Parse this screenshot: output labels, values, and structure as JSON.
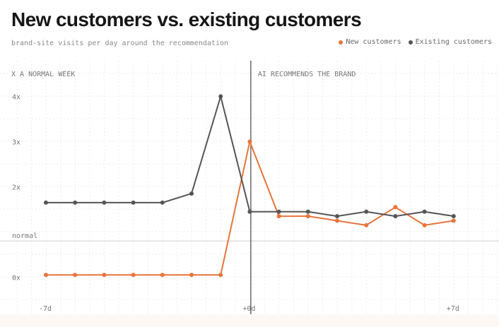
{
  "title": "New customers vs. existing customers",
  "subtitle": "brand-site visits per day around the recommendation",
  "legend": [
    {
      "label": "New customers",
      "color": "#e8743b"
    },
    {
      "label": "Existing customers",
      "color": "#555555"
    }
  ],
  "annotations": {
    "left": "X A NORMAL WEEK",
    "right": "AI RECOMMENDS THE BRAND",
    "normal_line": "normal"
  },
  "chart_data": {
    "type": "line",
    "title": "New customers vs. existing customers",
    "subtitle": "brand-site visits per day around the recommendation",
    "xlabel": "",
    "ylabel": "",
    "x": [
      -7,
      -6,
      -5,
      -4,
      -3,
      -2,
      -1,
      0,
      1,
      2,
      3,
      4,
      5,
      6,
      7
    ],
    "xticks": [
      {
        "value": -7,
        "label": "-7d"
      },
      {
        "value": 0,
        "label": "+0d"
      },
      {
        "value": 7,
        "label": "+7d"
      }
    ],
    "yticks": [
      {
        "value": 0,
        "label": "0x"
      },
      {
        "value": 2,
        "label": "2x"
      },
      {
        "value": 3,
        "label": "3x"
      },
      {
        "value": 4,
        "label": "4x"
      }
    ],
    "xlim": [
      -7.3,
      8.5
    ],
    "ylim": [
      -0.7,
      4.4
    ],
    "normal_value": 0.85,
    "event_x": 0,
    "grid": true,
    "legend_position": "top-right",
    "series": [
      {
        "name": "New customers",
        "color": "#e8743b",
        "values": [
          0.05,
          0.05,
          0.05,
          0.05,
          0.05,
          0.05,
          0.05,
          3.0,
          1.35,
          1.35,
          1.25,
          1.15,
          1.55,
          1.15,
          1.25
        ]
      },
      {
        "name": "Existing customers",
        "color": "#555555",
        "values": [
          1.65,
          1.65,
          1.65,
          1.65,
          1.65,
          1.85,
          4.0,
          1.45,
          1.45,
          1.45,
          1.35,
          1.45,
          1.35,
          1.45,
          1.35
        ]
      }
    ]
  }
}
